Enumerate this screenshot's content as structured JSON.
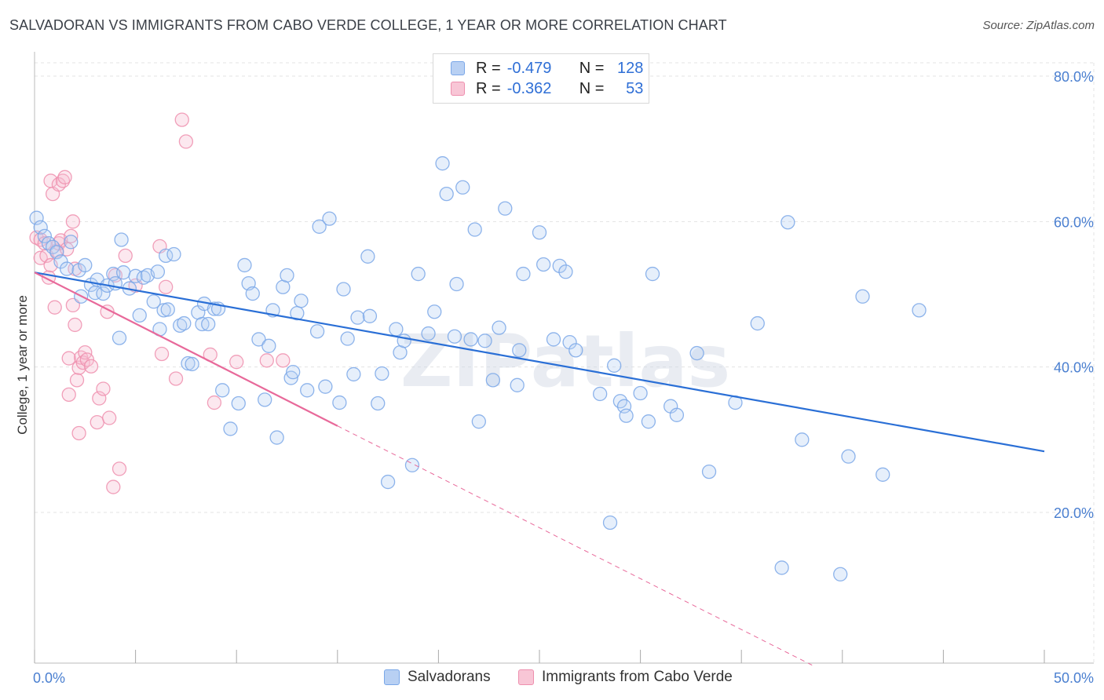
{
  "header": {
    "title": "SALVADORAN VS IMMIGRANTS FROM CABO VERDE COLLEGE, 1 YEAR OR MORE CORRELATION CHART",
    "source": "Source: ZipAtlas.com"
  },
  "watermark": "ZIPatlas",
  "legend_stats": [
    {
      "r_label": "R =",
      "r_value": "-0.479",
      "n_label": "N =",
      "n_value": "128",
      "color": "#7aa7e8",
      "fill": "#b8d0f3"
    },
    {
      "r_label": "R =",
      "r_value": "-0.362",
      "n_label": "N =",
      "n_value": "53",
      "color": "#ee8fae",
      "fill": "#f8c6d6"
    }
  ],
  "bottom_legend": [
    {
      "label": "Salvadorans"
    },
    {
      "label": "Immigrants from Cabo Verde"
    }
  ],
  "colors": {
    "blue": "#2a6fd6",
    "blue_point": "#7aa7e8",
    "pink": "#e8699a",
    "pink_point": "#ee8fae",
    "grid": "#e3e3e3",
    "tick_label": "#4a7fd0"
  },
  "chart_data": {
    "type": "scatter",
    "title": "SALVADORAN VS IMMIGRANTS FROM CABO VERDE COLLEGE, 1 YEAR OR MORE CORRELATION CHART",
    "xlabel": "",
    "ylabel": "College, 1 year or more",
    "xlim": [
      0,
      50
    ],
    "ylim": [
      0,
      82
    ],
    "x_tick_labels": [
      "0.0%",
      "50.0%"
    ],
    "y_ticks": [
      20,
      40,
      60,
      80
    ],
    "y_tick_labels": [
      "20.0%",
      "40.0%",
      "60.0%",
      "80.0%"
    ],
    "grid": true,
    "legend_position": "top-center",
    "series": [
      {
        "name": "Salvadorans",
        "points": [
          [
            0.1,
            60.5
          ],
          [
            0.3,
            59.2
          ],
          [
            0.5,
            58.0
          ],
          [
            0.7,
            57.0
          ],
          [
            0.9,
            56.5
          ],
          [
            1.1,
            55.8
          ],
          [
            1.3,
            54.5
          ],
          [
            1.6,
            53.5
          ],
          [
            1.8,
            57.2
          ],
          [
            2.2,
            53.3
          ],
          [
            2.3,
            49.7
          ],
          [
            2.5,
            54.0
          ],
          [
            2.8,
            51.3
          ],
          [
            3.0,
            50.2
          ],
          [
            3.1,
            52.0
          ],
          [
            3.4,
            50.1
          ],
          [
            3.6,
            51.2
          ],
          [
            3.9,
            52.8
          ],
          [
            4.0,
            51.5
          ],
          [
            4.2,
            44.0
          ],
          [
            4.3,
            57.5
          ],
          [
            4.4,
            53.0
          ],
          [
            4.7,
            50.8
          ],
          [
            5.0,
            52.5
          ],
          [
            5.2,
            47.1
          ],
          [
            5.4,
            52.3
          ],
          [
            5.6,
            52.6
          ],
          [
            5.9,
            49.0
          ],
          [
            6.1,
            53.1
          ],
          [
            6.2,
            45.2
          ],
          [
            6.4,
            47.8
          ],
          [
            6.5,
            55.3
          ],
          [
            6.6,
            47.9
          ],
          [
            6.9,
            55.5
          ],
          [
            7.2,
            45.7
          ],
          [
            7.4,
            46.0
          ],
          [
            7.6,
            40.5
          ],
          [
            7.8,
            40.4
          ],
          [
            8.1,
            47.5
          ],
          [
            8.3,
            45.9
          ],
          [
            8.4,
            48.7
          ],
          [
            8.6,
            45.9
          ],
          [
            8.9,
            48.0
          ],
          [
            9.1,
            48.0
          ],
          [
            9.3,
            36.8
          ],
          [
            9.7,
            31.5
          ],
          [
            10.1,
            35.0
          ],
          [
            10.4,
            54.0
          ],
          [
            10.6,
            51.5
          ],
          [
            10.8,
            50.1
          ],
          [
            11.1,
            43.8
          ],
          [
            11.4,
            35.5
          ],
          [
            11.6,
            42.9
          ],
          [
            11.8,
            47.8
          ],
          [
            12.0,
            30.3
          ],
          [
            12.3,
            51.0
          ],
          [
            12.5,
            52.6
          ],
          [
            12.7,
            38.5
          ],
          [
            12.8,
            39.3
          ],
          [
            13.0,
            47.4
          ],
          [
            13.2,
            49.1
          ],
          [
            13.5,
            36.8
          ],
          [
            14.0,
            44.9
          ],
          [
            14.1,
            59.3
          ],
          [
            14.4,
            37.3
          ],
          [
            14.6,
            60.4
          ],
          [
            15.1,
            35.1
          ],
          [
            15.3,
            50.7
          ],
          [
            15.5,
            43.9
          ],
          [
            15.8,
            39.0
          ],
          [
            16.0,
            46.8
          ],
          [
            16.5,
            55.2
          ],
          [
            16.6,
            47.0
          ],
          [
            17.0,
            35.0
          ],
          [
            17.2,
            39.1
          ],
          [
            17.5,
            24.2
          ],
          [
            17.9,
            45.2
          ],
          [
            18.1,
            42.0
          ],
          [
            18.3,
            43.6
          ],
          [
            18.7,
            26.5
          ],
          [
            19.0,
            52.8
          ],
          [
            19.5,
            44.6
          ],
          [
            19.8,
            47.6
          ],
          [
            20.2,
            68.0
          ],
          [
            20.4,
            63.8
          ],
          [
            20.8,
            44.2
          ],
          [
            20.9,
            51.4
          ],
          [
            21.2,
            64.7
          ],
          [
            21.6,
            43.8
          ],
          [
            21.8,
            58.9
          ],
          [
            22.0,
            32.5
          ],
          [
            22.3,
            43.6
          ],
          [
            22.7,
            38.2
          ],
          [
            23.0,
            45.4
          ],
          [
            23.3,
            61.8
          ],
          [
            23.9,
            37.5
          ],
          [
            24.0,
            42.3
          ],
          [
            24.2,
            52.8
          ],
          [
            25.0,
            58.5
          ],
          [
            25.2,
            54.1
          ],
          [
            25.7,
            43.8
          ],
          [
            26.0,
            53.9
          ],
          [
            26.3,
            53.1
          ],
          [
            26.5,
            43.4
          ],
          [
            26.8,
            42.3
          ],
          [
            28.0,
            36.3
          ],
          [
            28.5,
            18.6
          ],
          [
            28.7,
            40.2
          ],
          [
            29.0,
            35.3
          ],
          [
            29.2,
            34.6
          ],
          [
            29.3,
            33.3
          ],
          [
            30.0,
            36.4
          ],
          [
            30.4,
            32.5
          ],
          [
            30.6,
            52.8
          ],
          [
            31.5,
            34.6
          ],
          [
            31.8,
            33.4
          ],
          [
            32.8,
            41.9
          ],
          [
            33.4,
            25.6
          ],
          [
            34.7,
            35.1
          ],
          [
            35.8,
            46.0
          ],
          [
            37.0,
            12.4
          ],
          [
            37.3,
            59.9
          ],
          [
            38.0,
            30.0
          ],
          [
            39.9,
            11.5
          ],
          [
            40.3,
            27.7
          ],
          [
            41.0,
            49.7
          ],
          [
            42.0,
            25.2
          ],
          [
            43.8,
            47.8
          ]
        ]
      },
      {
        "name": "Immigrants from Cabo Verde",
        "points": [
          [
            0.1,
            57.8
          ],
          [
            0.3,
            55.0
          ],
          [
            0.3,
            57.5
          ],
          [
            0.5,
            57.0
          ],
          [
            0.6,
            55.3
          ],
          [
            0.7,
            52.3
          ],
          [
            0.8,
            54.0
          ],
          [
            0.8,
            65.6
          ],
          [
            0.9,
            63.8
          ],
          [
            1.0,
            48.2
          ],
          [
            1.1,
            56.0
          ],
          [
            1.2,
            57.0
          ],
          [
            1.2,
            65.1
          ],
          [
            1.3,
            57.4
          ],
          [
            1.4,
            65.6
          ],
          [
            1.5,
            66.1
          ],
          [
            1.6,
            56.2
          ],
          [
            1.7,
            41.2
          ],
          [
            1.7,
            36.2
          ],
          [
            1.8,
            58.0
          ],
          [
            1.9,
            60.0
          ],
          [
            1.9,
            48.5
          ],
          [
            2.0,
            53.5
          ],
          [
            2.0,
            45.8
          ],
          [
            2.1,
            38.2
          ],
          [
            2.2,
            39.9
          ],
          [
            2.2,
            30.9
          ],
          [
            2.3,
            41.3
          ],
          [
            2.4,
            40.6
          ],
          [
            2.5,
            42.0
          ],
          [
            2.6,
            41.0
          ],
          [
            2.8,
            40.1
          ],
          [
            3.1,
            32.4
          ],
          [
            3.2,
            35.7
          ],
          [
            3.4,
            37.0
          ],
          [
            3.6,
            47.6
          ],
          [
            3.7,
            33.0
          ],
          [
            3.9,
            23.5
          ],
          [
            4.0,
            52.6
          ],
          [
            4.2,
            26.0
          ],
          [
            4.5,
            55.3
          ],
          [
            5.0,
            51.2
          ],
          [
            6.2,
            56.6
          ],
          [
            6.3,
            41.8
          ],
          [
            6.5,
            51.0
          ],
          [
            7.0,
            38.4
          ],
          [
            7.3,
            74.0
          ],
          [
            7.5,
            71.0
          ],
          [
            8.7,
            41.7
          ],
          [
            8.9,
            35.1
          ],
          [
            10.0,
            40.7
          ],
          [
            11.5,
            40.9
          ],
          [
            12.3,
            40.9
          ]
        ]
      }
    ],
    "trend_lines": [
      {
        "series": "Salvadorans",
        "x": [
          0,
          50
        ],
        "y": [
          53.0,
          28.4
        ],
        "style": "solid"
      },
      {
        "series": "Immigrants from Cabo Verde",
        "x": [
          0,
          15
        ],
        "y": [
          53.0,
          31.9
        ],
        "style": "solid"
      },
      {
        "series": "Immigrants from Cabo Verde",
        "x": [
          15,
          38.5
        ],
        "y": [
          31.9,
          -1.0
        ],
        "style": "dashed"
      }
    ]
  }
}
